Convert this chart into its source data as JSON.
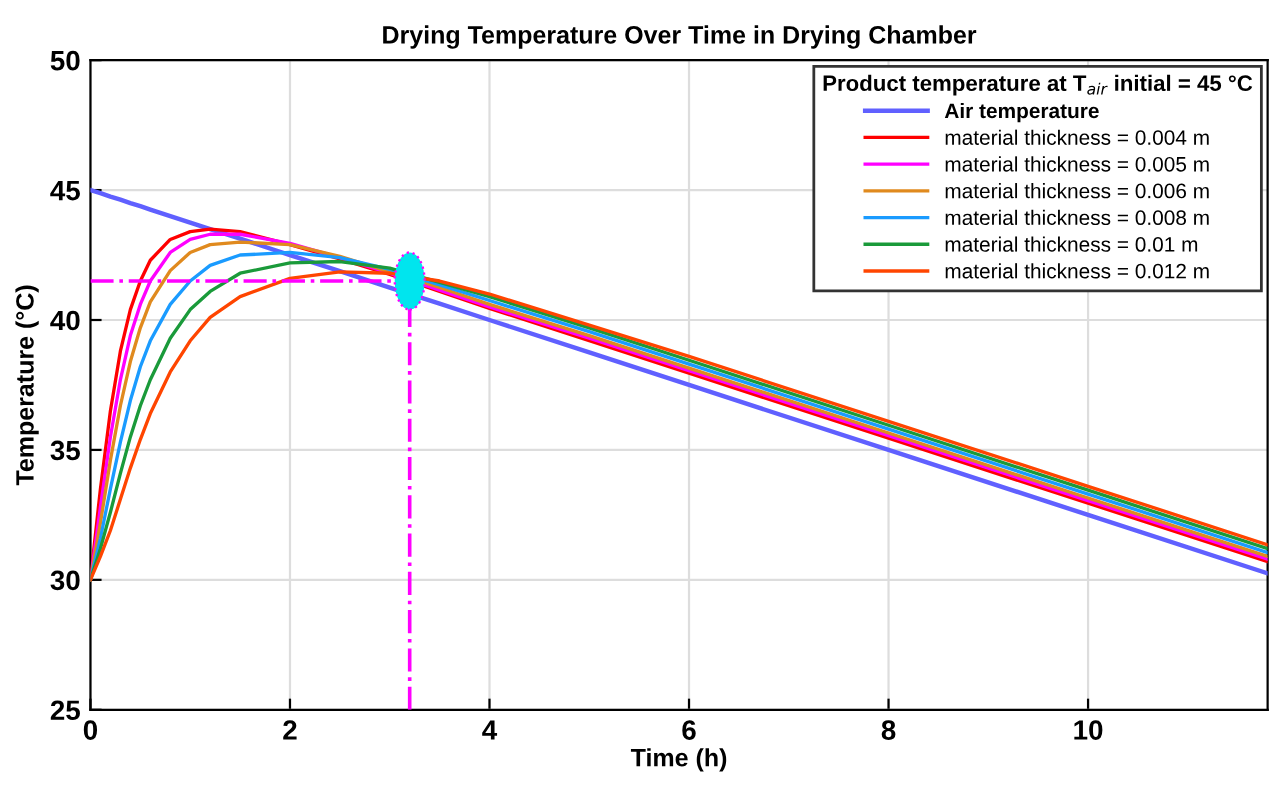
{
  "chart_data": {
    "type": "line",
    "title": "Drying Temperature Over Time in Drying Chamber",
    "xlabel": "Time (h)",
    "ylabel": "Temperature (°C)",
    "legend_title": "Product temperature at T$_{air}$ initial = 45 °C",
    "x": [
      0,
      0.1,
      0.2,
      0.3,
      0.4,
      0.5,
      0.6,
      0.8,
      1.0,
      1.2,
      1.5,
      2,
      2.5,
      3,
      3.5,
      4,
      5,
      6,
      8,
      10,
      11.8
    ],
    "xlim": [
      0,
      11.8
    ],
    "xticks": [
      0,
      2,
      4,
      6,
      8,
      10
    ],
    "ylim": [
      25,
      50
    ],
    "yticks": [
      25,
      30,
      35,
      40,
      45,
      50
    ],
    "grid": true,
    "legend": "top right",
    "marker": "none",
    "line_style": "solid",
    "series": [
      {
        "name": "Air temperature",
        "color": "#6060ff",
        "values": [
          45,
          44.88,
          44.75,
          44.63,
          44.5,
          44.38,
          44.25,
          44,
          43.75,
          43.5,
          43.13,
          42.5,
          41.88,
          41.25,
          40.63,
          40,
          38.75,
          37.5,
          35,
          32.5,
          30.25
        ]
      },
      {
        "name": "material thickness = 0.004 m",
        "color": "#ff0000",
        "values": [
          30,
          33.5,
          36.5,
          38.8,
          40.4,
          41.5,
          42.3,
          43.1,
          43.4,
          43.5,
          43.4,
          42.9,
          42.35,
          41.75,
          41.1,
          40.45,
          39.2,
          37.95,
          35.45,
          32.95,
          30.7
        ]
      },
      {
        "name": "material thickness = 0.005 m",
        "color": "#ff00ff",
        "values": [
          30,
          32.8,
          35.5,
          37.7,
          39.4,
          40.6,
          41.5,
          42.6,
          43.1,
          43.3,
          43.3,
          42.95,
          42.4,
          41.8,
          41.15,
          40.5,
          39.3,
          38.05,
          35.55,
          33.05,
          30.8
        ]
      },
      {
        "name": "material thickness = 0.006 m",
        "color": "#e08a1e",
        "values": [
          30,
          32.2,
          34.6,
          36.7,
          38.4,
          39.7,
          40.7,
          41.9,
          42.6,
          42.9,
          43.0,
          42.9,
          42.45,
          41.85,
          41.25,
          40.6,
          39.4,
          38.15,
          35.65,
          33.15,
          30.9
        ]
      },
      {
        "name": "material thickness = 0.008 m",
        "color": "#1a9bff",
        "values": [
          30,
          31.6,
          33.5,
          35.3,
          36.9,
          38.2,
          39.2,
          40.6,
          41.5,
          42.1,
          42.5,
          42.6,
          42.4,
          41.95,
          41.35,
          40.75,
          39.55,
          38.3,
          35.8,
          33.3,
          31.05
        ]
      },
      {
        "name": "material thickness = 0.01 m",
        "color": "#1a9a3a",
        "values": [
          30,
          31.2,
          32.6,
          34.1,
          35.5,
          36.7,
          37.7,
          39.3,
          40.4,
          41.1,
          41.8,
          42.2,
          42.25,
          42.0,
          41.45,
          40.9,
          39.7,
          38.45,
          35.95,
          33.45,
          31.2
        ]
      },
      {
        "name": "material thickness = 0.012 m",
        "color": "#ff4500",
        "values": [
          30,
          30.9,
          31.9,
          33.1,
          34.3,
          35.4,
          36.4,
          38.0,
          39.2,
          40.1,
          40.9,
          41.6,
          41.85,
          41.8,
          41.5,
          41.0,
          39.8,
          38.6,
          36.1,
          33.6,
          31.35
        ]
      },
      {
        "type": "scatter",
        "marker": "circle",
        "color": "#00e5ee",
        "x": [
          3.2
        ],
        "values": [
          41.5
        ]
      }
    ],
    "ref_lines": [
      {
        "axis": "y",
        "value": 41.5,
        "color": "#ff00ff",
        "line_style": "dashdot"
      },
      {
        "axis": "x",
        "value": 3.2,
        "color": "#ff00ff",
        "line_style": "dashdot"
      }
    ]
  }
}
